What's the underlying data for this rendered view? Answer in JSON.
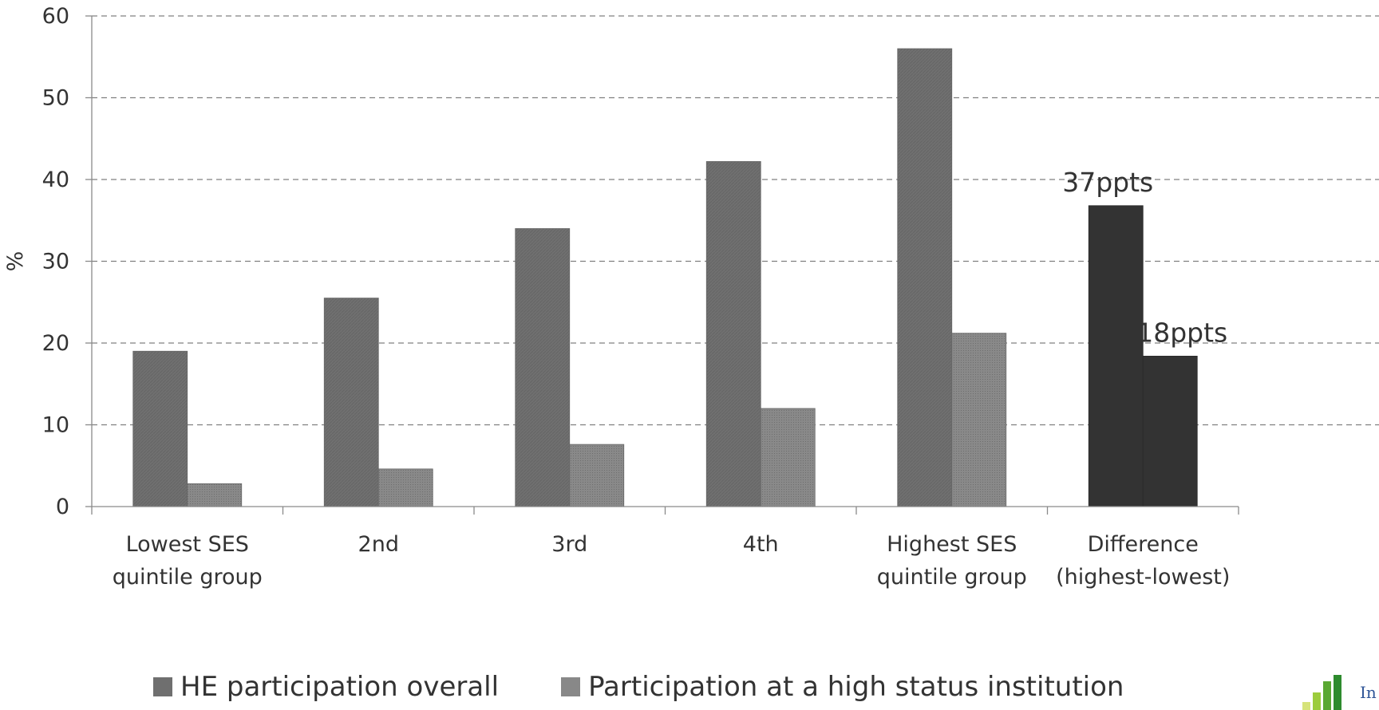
{
  "chart_data": {
    "type": "bar",
    "title": "",
    "xlabel": "",
    "ylabel": "%",
    "ylim": [
      0,
      60
    ],
    "yticks": [
      0,
      10,
      20,
      30,
      40,
      50,
      60
    ],
    "grid": true,
    "legend_position": "bottom",
    "categories": [
      [
        "Lowest SES",
        "quintile group"
      ],
      [
        "2nd"
      ],
      [
        "3rd"
      ],
      [
        "4th"
      ],
      [
        "Highest SES",
        "quintile group"
      ],
      [
        "Difference",
        "(highest-lowest)"
      ]
    ],
    "series": [
      {
        "name": "HE participation overall",
        "values": [
          19,
          25.5,
          34,
          42.2,
          56,
          36.8
        ],
        "color": "#6f6f6f",
        "highlight_color": "#333333"
      },
      {
        "name": "Participation at a high status institution",
        "values": [
          2.8,
          4.6,
          7.6,
          12,
          21.2,
          18.4
        ],
        "color": "#888888",
        "highlight_color": "#333333"
      }
    ],
    "highlight_category_index": 5,
    "annotations": [
      {
        "category_index": 5,
        "series_index": 0,
        "text": "37ppts"
      },
      {
        "category_index": 5,
        "series_index": 1,
        "text": "18ppts"
      }
    ]
  },
  "logo": {
    "text": "In",
    "colors": [
      "#d6e37a",
      "#9ccc3c",
      "#5aa832",
      "#2e8b2e"
    ]
  }
}
